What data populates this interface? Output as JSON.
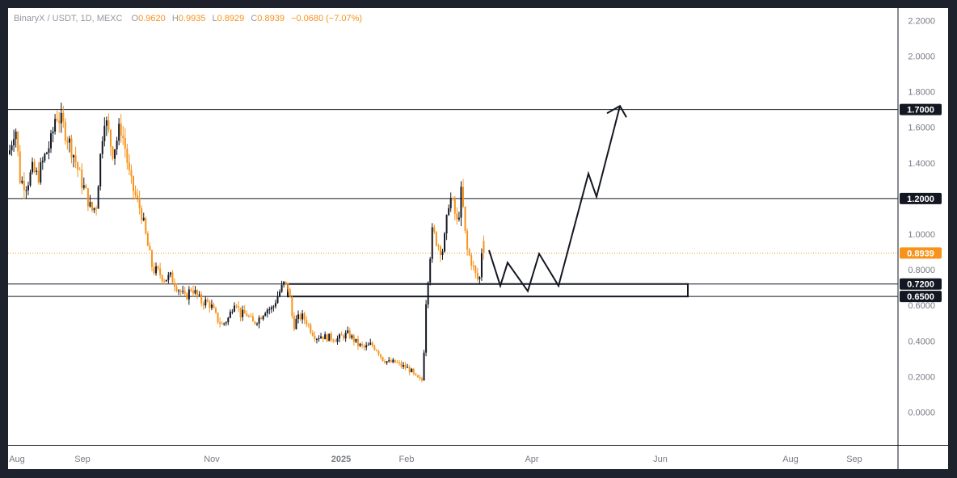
{
  "header": {
    "symbol": "BinaryX / USDT, 1D, MEXC",
    "open_label": "O",
    "open": "0.9620",
    "high_label": "H",
    "high": "0.9935",
    "low_label": "L",
    "low": "0.8929",
    "close_label": "C",
    "close": "0.8939",
    "change": "−0.0680 (−7.07%)"
  },
  "colors": {
    "up": "#131722",
    "down": "#f7931a",
    "price": "#f7931a",
    "frame": "#1e222d",
    "axis_text": "#787b86"
  },
  "chart_data": {
    "type": "candlestick",
    "symbol": "BinaryX / USDT",
    "timeframe": "1D",
    "exchange": "MEXC",
    "ylim": [
      -0.16,
      2.24
    ],
    "y_ticks": [
      "2.2000",
      "2.0000",
      "1.8000",
      "1.6000",
      "1.4000",
      "1.2000",
      "1.0000",
      "0.8000",
      "0.6000",
      "0.4000",
      "0.2000",
      "0.0000"
    ],
    "x_ticks": [
      "Aug",
      "Sep",
      "Nov",
      "2025",
      "Feb",
      "Apr",
      "Jun",
      "Aug",
      "Sep"
    ],
    "last_price": 0.8939,
    "horizontal_levels": [
      {
        "value": 1.7,
        "label": "1.7000"
      },
      {
        "value": 1.2,
        "label": "1.2000"
      }
    ],
    "zone": {
      "top": 0.72,
      "bottom": 0.65,
      "top_label": "0.7200",
      "bottom_label": "0.6500"
    },
    "candle_path": [
      [
        0,
        1.45
      ],
      [
        8,
        1.62
      ],
      [
        14,
        1.3
      ],
      [
        22,
        1.28
      ],
      [
        29,
        1.36
      ],
      [
        36,
        1.32
      ],
      [
        43,
        1.42
      ],
      [
        53,
        1.53
      ],
      [
        58,
        1.68
      ],
      [
        66,
        1.62
      ],
      [
        72,
        1.55
      ],
      [
        80,
        1.45
      ],
      [
        88,
        1.32
      ],
      [
        96,
        1.22
      ],
      [
        102,
        1.13
      ],
      [
        108,
        1.16
      ],
      [
        114,
        1.48
      ],
      [
        118,
        1.67
      ],
      [
        124,
        1.55
      ],
      [
        128,
        1.46
      ],
      [
        133,
        1.52
      ],
      [
        138,
        1.61
      ],
      [
        144,
        1.48
      ],
      [
        150,
        1.3
      ],
      [
        156,
        1.22
      ],
      [
        164,
        1.12
      ],
      [
        171,
        0.95
      ],
      [
        178,
        0.8
      ],
      [
        184,
        0.79
      ],
      [
        192,
        0.75
      ],
      [
        200,
        0.76
      ],
      [
        206,
        0.72
      ],
      [
        212,
        0.68
      ],
      [
        218,
        0.64
      ],
      [
        226,
        0.7
      ],
      [
        232,
        0.66
      ],
      [
        238,
        0.62
      ],
      [
        244,
        0.62
      ],
      [
        250,
        0.6
      ],
      [
        258,
        0.52
      ],
      [
        264,
        0.49
      ],
      [
        272,
        0.53
      ],
      [
        280,
        0.64
      ],
      [
        286,
        0.55
      ],
      [
        294,
        0.55
      ],
      [
        302,
        0.5
      ],
      [
        310,
        0.53
      ],
      [
        318,
        0.58
      ],
      [
        326,
        0.58
      ],
      [
        332,
        0.65
      ],
      [
        340,
        0.72
      ],
      [
        346,
        0.7
      ],
      [
        352,
        0.48
      ],
      [
        356,
        0.52
      ],
      [
        362,
        0.54
      ],
      [
        368,
        0.51
      ],
      [
        374,
        0.46
      ],
      [
        380,
        0.42
      ],
      [
        386,
        0.43
      ],
      [
        392,
        0.42
      ],
      [
        398,
        0.42
      ],
      [
        406,
        0.41
      ],
      [
        414,
        0.43
      ],
      [
        420,
        0.44
      ],
      [
        426,
        0.41
      ],
      [
        432,
        0.38
      ],
      [
        440,
        0.36
      ],
      [
        448,
        0.38
      ],
      [
        456,
        0.35
      ],
      [
        462,
        0.3
      ],
      [
        470,
        0.28
      ],
      [
        478,
        0.28
      ],
      [
        486,
        0.26
      ],
      [
        492,
        0.25
      ],
      [
        498,
        0.23
      ],
      [
        502,
        0.2
      ],
      [
        508,
        0.18
      ],
      [
        512,
        0.18
      ],
      [
        516,
        0.62
      ],
      [
        520,
        0.83
      ],
      [
        524,
        1.02
      ],
      [
        530,
        0.95
      ],
      [
        536,
        0.9
      ],
      [
        540,
        1.0
      ],
      [
        545,
        1.22
      ],
      [
        550,
        1.15
      ],
      [
        555,
        1.05
      ],
      [
        560,
        1.25
      ],
      [
        566,
        0.92
      ],
      [
        572,
        0.85
      ],
      [
        578,
        0.76
      ],
      [
        582,
        0.73
      ],
      [
        586,
        0.97
      ],
      [
        589,
        0.89
      ]
    ],
    "projection_path": [
      [
        595,
        0.91
      ],
      [
        609,
        0.71
      ],
      [
        618,
        0.84
      ],
      [
        643,
        0.68
      ],
      [
        657,
        0.89
      ],
      [
        681,
        0.71
      ],
      [
        718,
        1.34
      ],
      [
        728,
        1.21
      ],
      [
        757,
        1.72
      ]
    ]
  }
}
